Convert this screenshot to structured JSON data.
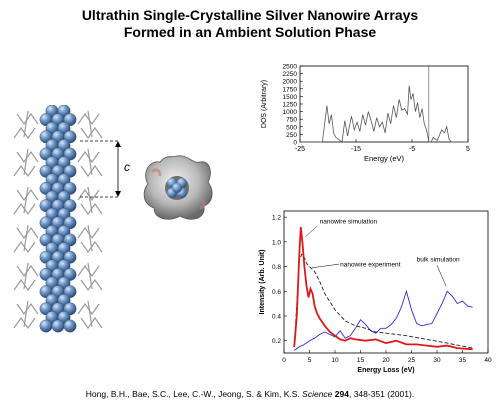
{
  "title": {
    "line1": "Ultrathin Single-Crystalline Silver Nanowire Arrays",
    "line2": "Formed in an Ambient Solution Phase"
  },
  "colors": {
    "silver_atom": "#6f98c9",
    "nanowire_sim": "#2b2bd6",
    "experiment_red": "#e01818",
    "cap_gray": "#9a9a9a"
  },
  "molecule_figure": {
    "c_label": "c"
  },
  "dos_chart": {
    "type": "line",
    "ylabel": "DOS (Arbitrary)",
    "xlabel": "Energy (eV)",
    "xlim": [
      -25,
      5
    ],
    "ylim": [
      0,
      2500
    ],
    "x_ticks": [
      "-25",
      "-15",
      "-5",
      "5"
    ],
    "y_ticks": [
      "0",
      "250",
      "500",
      "750",
      "1000",
      "1250",
      "1500",
      "1750",
      "2000",
      "2250",
      "2500"
    ],
    "fermi_line_x": -2,
    "x": [
      -25,
      -21,
      -20.2,
      -19.8,
      -19.4,
      -19,
      -18.6,
      -17.5,
      -17,
      -16.5,
      -16.2,
      -15.8,
      -15.3,
      -14.8,
      -14.3,
      -13.8,
      -13.3,
      -12.8,
      -12.3,
      -11.8,
      -11.3,
      -10.8,
      -10.3,
      -9.8,
      -9.3,
      -8.8,
      -8.3,
      -7.8,
      -7.3,
      -6.8,
      -6.3,
      -5.8,
      -5.5,
      -5.2,
      -4.8,
      -4.4,
      -4,
      -3.6,
      -3.2,
      -2.8,
      -2.4,
      -2,
      -1.6,
      -1.2,
      -0.5,
      0.3,
      0.8,
      1.2,
      1.6,
      2,
      5
    ],
    "values": [
      0,
      0,
      1200,
      600,
      900,
      300,
      150,
      0,
      700,
      200,
      500,
      850,
      400,
      650,
      350,
      900,
      550,
      1000,
      700,
      350,
      800,
      500,
      650,
      300,
      950,
      600,
      1200,
      800,
      1400,
      1050,
      1100,
      900,
      1850,
      1400,
      1600,
      1000,
      1300,
      800,
      1100,
      600,
      400,
      0,
      0,
      150,
      50,
      400,
      300,
      500,
      100,
      0,
      0
    ]
  },
  "eels_chart": {
    "type": "line",
    "ylabel": "Intensity (Arb. Unit)",
    "xlabel": "Energy Loss (eV)",
    "xlim": [
      0,
      40
    ],
    "ylim": [
      0.1,
      1.25
    ],
    "x_ticks": [
      "0",
      "5",
      "10",
      "15",
      "20",
      "25",
      "30",
      "35",
      "40"
    ],
    "y_ticks": [
      "0.2",
      "0.4",
      "0.6",
      "0.8",
      "1.0",
      "1.2"
    ],
    "annotations": {
      "nanowire_simulation": "nanowire simulation",
      "nanowire_experiment": "nanowire experiment",
      "bulk_simulation": "bulk simulation"
    },
    "series": [
      {
        "name": "nanowire simulation",
        "style": "solid-red",
        "x": [
          2,
          2.5,
          3,
          3.3,
          3.6,
          4,
          4.4,
          4.8,
          5.2,
          5.6,
          6,
          6.5,
          7,
          8,
          9,
          10,
          11,
          12,
          13,
          14,
          16,
          18,
          20,
          22,
          24,
          26,
          28,
          30,
          32,
          34,
          37
        ],
        "values": [
          0.15,
          0.4,
          0.9,
          1.12,
          1.0,
          0.8,
          0.65,
          0.55,
          0.62,
          0.58,
          0.48,
          0.42,
          0.38,
          0.32,
          0.27,
          0.24,
          0.21,
          0.2,
          0.22,
          0.21,
          0.2,
          0.21,
          0.18,
          0.2,
          0.17,
          0.17,
          0.16,
          0.15,
          0.16,
          0.14,
          0.13
        ]
      },
      {
        "name": "nanowire experiment",
        "style": "dashed-black",
        "x": [
          2,
          2.5,
          3,
          3.5,
          4,
          4.5,
          5,
          6,
          7,
          8,
          10,
          12,
          14,
          16,
          18,
          20,
          24,
          28,
          32,
          37
        ],
        "values": [
          0.15,
          0.5,
          0.85,
          0.9,
          0.87,
          0.82,
          0.8,
          0.76,
          0.68,
          0.58,
          0.45,
          0.36,
          0.32,
          0.3,
          0.27,
          0.26,
          0.24,
          0.21,
          0.18,
          0.14
        ]
      },
      {
        "name": "bulk simulation",
        "style": "solid-blue",
        "x": [
          2,
          3,
          4,
          5,
          6,
          7,
          8,
          9,
          10,
          11,
          12,
          13,
          14,
          15,
          16,
          17,
          18,
          19,
          20,
          21,
          22,
          23,
          24,
          25,
          26,
          27,
          28,
          29,
          30,
          31,
          32,
          33,
          34,
          35,
          36,
          37
        ],
        "values": [
          0.12,
          0.15,
          0.17,
          0.2,
          0.22,
          0.25,
          0.27,
          0.25,
          0.23,
          0.28,
          0.22,
          0.24,
          0.3,
          0.37,
          0.33,
          0.28,
          0.26,
          0.3,
          0.3,
          0.33,
          0.38,
          0.47,
          0.6,
          0.45,
          0.34,
          0.32,
          0.33,
          0.34,
          0.42,
          0.5,
          0.6,
          0.56,
          0.5,
          0.52,
          0.48,
          0.47
        ]
      }
    ]
  },
  "citation": {
    "authors": "Hong, B.H., Bae, S.C., Lee, C.-W., Jeong, S. & Kim, K.S. ",
    "journal": "Science",
    "volume": " 294",
    "pages": ", 348-351 (2001)."
  }
}
